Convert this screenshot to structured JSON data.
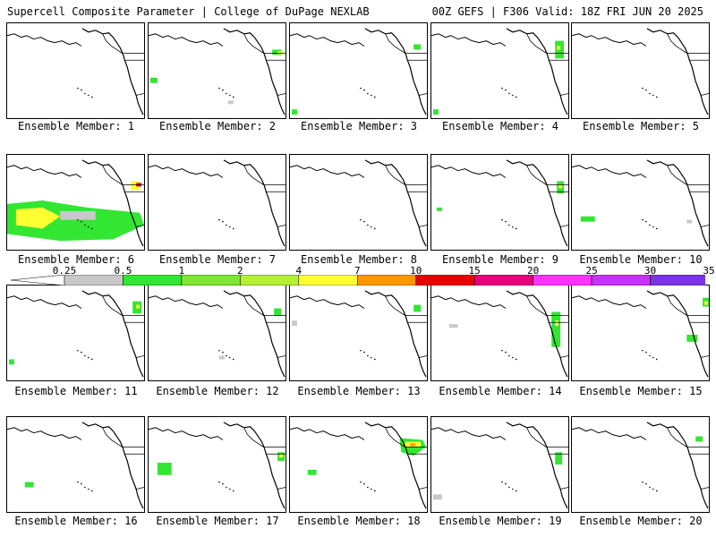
{
  "header": {
    "left": "Supercell Composite Parameter | College of DuPage NEXLAB",
    "right": "00Z GEFS | F306 Valid: 18Z FRI JUN 20 2025"
  },
  "colorbar": {
    "labels": [
      "0.25",
      "0.5",
      "1",
      "2",
      "4",
      "7",
      "10",
      "15",
      "20",
      "25",
      "30",
      "35"
    ],
    "colors": [
      "#c8c8c8",
      "#32e632",
      "#7fe632",
      "#b4f032",
      "#ffff32",
      "#ff9600",
      "#e60000",
      "#e6007d",
      "#ff32ff",
      "#c832ff",
      "#7d32e6",
      "#a064dc",
      "#32e6e6"
    ]
  },
  "members": [
    {
      "label": "Ensemble Member: 1"
    },
    {
      "label": "Ensemble Member: 2"
    },
    {
      "label": "Ensemble Member: 3"
    },
    {
      "label": "Ensemble Member: 4"
    },
    {
      "label": "Ensemble Member: 5"
    },
    {
      "label": "Ensemble Member: 6"
    },
    {
      "label": "Ensemble Member: 7"
    },
    {
      "label": "Ensemble Member: 8"
    },
    {
      "label": "Ensemble Member: 9"
    },
    {
      "label": "Ensemble Member: 10"
    },
    {
      "label": "Ensemble Member: 11"
    },
    {
      "label": "Ensemble Member: 12"
    },
    {
      "label": "Ensemble Member: 13"
    },
    {
      "label": "Ensemble Member: 14"
    },
    {
      "label": "Ensemble Member: 15"
    },
    {
      "label": "Ensemble Member: 16"
    },
    {
      "label": "Ensemble Member: 17"
    },
    {
      "label": "Ensemble Member: 18"
    },
    {
      "label": "Ensemble Member: 19"
    },
    {
      "label": "Ensemble Member: 20"
    }
  ]
}
